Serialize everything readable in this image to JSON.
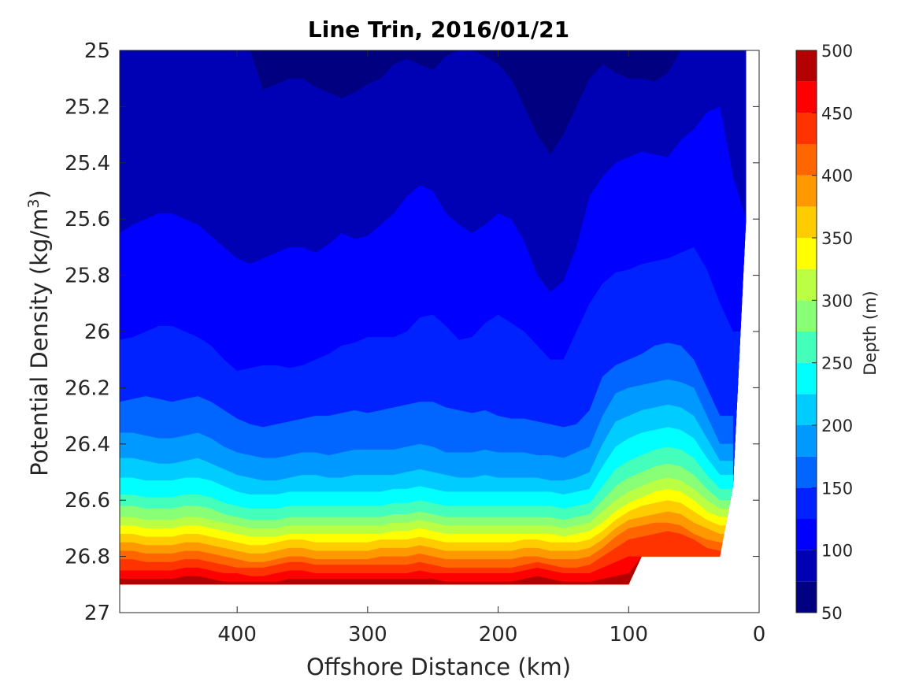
{
  "chart_data": {
    "type": "heatmap",
    "subtype": "filled-contour",
    "title": "Line Trin, 2016/01/21",
    "xlabel": "Offshore Distance (km)",
    "ylabel_main": "Potential Density (kg/m",
    "ylabel_sup": "3",
    "ylabel_close": ")",
    "xlim": [
      490,
      0
    ],
    "x_reversed": true,
    "ylim": [
      25,
      27
    ],
    "y_reversed": true,
    "xticks": [
      400,
      300,
      200,
      100,
      0
    ],
    "xtick_labels": [
      "400",
      "300",
      "200",
      "100",
      "0"
    ],
    "yticks": [
      25,
      25.2,
      25.4,
      25.6,
      25.8,
      26,
      26.2,
      26.4,
      26.6,
      26.8,
      27
    ],
    "ytick_labels": [
      "25",
      "25.2",
      "25.4",
      "25.6",
      "25.8",
      "26",
      "26.2",
      "26.4",
      "26.6",
      "26.8",
      "27"
    ],
    "colorbar": {
      "label": "Depth (m)",
      "range": [
        50,
        500
      ],
      "ticks": [
        50,
        100,
        150,
        200,
        250,
        300,
        350,
        400,
        450,
        500
      ],
      "tick_labels": [
        "50",
        "100",
        "150",
        "200",
        "250",
        "300",
        "350",
        "400",
        "450",
        "500"
      ],
      "levels": [
        50,
        75,
        100,
        125,
        150,
        175,
        200,
        225,
        250,
        275,
        300,
        325,
        350,
        375,
        400,
        425,
        450,
        475,
        500
      ],
      "colors": [
        "#000080",
        "#0000b5",
        "#0000ff",
        "#0022ff",
        "#0066ff",
        "#0099ff",
        "#00ccff",
        "#00ffff",
        "#44ffbb",
        "#88ff77",
        "#bbff44",
        "#ffff00",
        "#ffcc00",
        "#ff9900",
        "#ff6600",
        "#ff3300",
        "#ff0000",
        "#b30000"
      ]
    },
    "x_samples": [
      490,
      480,
      470,
      460,
      450,
      440,
      430,
      420,
      410,
      400,
      390,
      380,
      370,
      360,
      350,
      340,
      330,
      320,
      310,
      300,
      290,
      280,
      270,
      260,
      250,
      240,
      230,
      220,
      210,
      200,
      190,
      180,
      170,
      160,
      150,
      140,
      130,
      120,
      110,
      100,
      90,
      80,
      70,
      60,
      50,
      40,
      30,
      20,
      10,
      0
    ],
    "contours": [
      {
        "depth": 75,
        "y": [
          25,
          25,
          25,
          25,
          25,
          25,
          25,
          25,
          25,
          25,
          25.0,
          25.14,
          25.12,
          25.1,
          25.1,
          25.13,
          25.15,
          25.17,
          25.15,
          25.12,
          25.1,
          25.05,
          25.03,
          25.05,
          25.07,
          25.02,
          25.0,
          25,
          25.02,
          25.05,
          25.1,
          25.2,
          25.3,
          25.37,
          25.3,
          25.2,
          25.1,
          25.05,
          25.08,
          25.1,
          25.1,
          25.11,
          25.08,
          25.0,
          25,
          25,
          25,
          25,
          25.0,
          null
        ]
      },
      {
        "depth": 100,
        "y": [
          25.65,
          25.62,
          25.6,
          25.58,
          25.58,
          25.6,
          25.62,
          25.66,
          25.7,
          25.74,
          25.76,
          25.74,
          25.72,
          25.7,
          25.7,
          25.72,
          25.69,
          25.65,
          25.67,
          25.66,
          25.62,
          25.58,
          25.52,
          25.48,
          25.5,
          25.58,
          25.62,
          25.65,
          25.62,
          25.58,
          25.6,
          25.68,
          25.8,
          25.86,
          25.82,
          25.7,
          25.52,
          25.45,
          25.4,
          25.38,
          25.36,
          25.37,
          25.38,
          25.32,
          25.28,
          25.22,
          25.2,
          25.45,
          25.6,
          null
        ]
      },
      {
        "depth": 125,
        "y": [
          26.03,
          26.02,
          26.0,
          25.98,
          25.98,
          26.0,
          26.02,
          26.05,
          26.1,
          26.14,
          26.13,
          26.12,
          26.12,
          26.13,
          26.12,
          26.1,
          26.08,
          26.05,
          26.04,
          26.02,
          26.02,
          26.02,
          26.0,
          25.95,
          25.94,
          25.98,
          26.03,
          26.02,
          25.97,
          25.94,
          25.97,
          26.0,
          26.05,
          26.1,
          26.1,
          26.0,
          25.9,
          25.83,
          25.79,
          25.78,
          25.76,
          25.75,
          25.74,
          25.72,
          25.7,
          25.78,
          25.9,
          26.0,
          26.0,
          null
        ]
      },
      {
        "depth": 150,
        "y": [
          26.25,
          26.24,
          26.23,
          26.24,
          26.25,
          26.24,
          26.23,
          26.25,
          26.28,
          26.31,
          26.33,
          26.34,
          26.33,
          26.32,
          26.31,
          26.3,
          26.3,
          26.29,
          26.28,
          26.29,
          26.28,
          26.27,
          26.26,
          26.25,
          26.25,
          26.27,
          26.28,
          26.29,
          26.28,
          26.3,
          26.31,
          26.31,
          26.32,
          26.33,
          26.34,
          26.33,
          26.28,
          26.16,
          26.12,
          26.1,
          26.08,
          26.05,
          26.04,
          26.05,
          26.1,
          26.2,
          26.3,
          26.3,
          null,
          null
        ]
      },
      {
        "depth": 175,
        "y": [
          26.36,
          26.36,
          26.37,
          26.38,
          26.38,
          26.37,
          26.36,
          26.38,
          26.41,
          26.43,
          26.44,
          26.45,
          26.45,
          26.44,
          26.43,
          26.43,
          26.44,
          26.43,
          26.42,
          26.42,
          26.42,
          26.42,
          26.41,
          26.4,
          26.41,
          26.43,
          26.43,
          26.43,
          26.42,
          26.43,
          26.43,
          26.43,
          26.44,
          26.44,
          26.45,
          26.43,
          26.41,
          26.3,
          26.22,
          26.2,
          26.19,
          26.18,
          26.17,
          26.18,
          26.2,
          26.3,
          26.4,
          26.4,
          null,
          null
        ]
      },
      {
        "depth": 200,
        "y": [
          26.45,
          26.45,
          26.46,
          26.47,
          26.47,
          26.46,
          26.45,
          26.47,
          26.49,
          26.51,
          26.52,
          26.53,
          26.53,
          26.52,
          26.51,
          26.51,
          26.52,
          26.52,
          26.51,
          26.51,
          26.51,
          26.51,
          26.5,
          26.49,
          26.5,
          26.51,
          26.52,
          26.52,
          26.51,
          26.52,
          26.52,
          26.52,
          26.52,
          26.53,
          26.53,
          26.52,
          26.5,
          26.4,
          26.32,
          26.3,
          26.28,
          26.27,
          26.26,
          26.27,
          26.3,
          26.38,
          26.46,
          26.46,
          null,
          null
        ]
      },
      {
        "depth": 225,
        "y": [
          26.52,
          26.52,
          26.53,
          26.53,
          26.53,
          26.52,
          26.52,
          26.53,
          26.55,
          26.57,
          26.58,
          26.58,
          26.58,
          26.57,
          26.57,
          26.57,
          26.57,
          26.57,
          26.57,
          26.57,
          26.57,
          26.56,
          26.56,
          26.55,
          26.56,
          26.57,
          26.57,
          26.57,
          26.57,
          26.57,
          26.57,
          26.57,
          26.57,
          26.57,
          26.58,
          26.57,
          26.56,
          26.48,
          26.41,
          26.38,
          26.36,
          26.35,
          26.34,
          26.35,
          26.38,
          26.45,
          26.51,
          26.51,
          null,
          null
        ]
      },
      {
        "depth": 250,
        "y": [
          26.58,
          26.58,
          26.59,
          26.59,
          26.59,
          26.58,
          26.58,
          26.59,
          26.61,
          26.62,
          26.63,
          26.63,
          26.63,
          26.62,
          26.62,
          26.62,
          26.62,
          26.62,
          26.62,
          26.62,
          26.62,
          26.61,
          26.61,
          26.6,
          26.61,
          26.62,
          26.62,
          26.62,
          26.62,
          26.62,
          26.62,
          26.62,
          26.62,
          26.62,
          26.63,
          26.62,
          26.61,
          26.55,
          26.49,
          26.46,
          26.44,
          26.42,
          26.41,
          26.42,
          26.45,
          26.51,
          26.56,
          26.56,
          null,
          null
        ]
      },
      {
        "depth": 275,
        "y": [
          26.62,
          26.62,
          26.63,
          26.63,
          26.63,
          26.62,
          26.62,
          26.63,
          26.65,
          26.66,
          26.67,
          26.67,
          26.67,
          26.66,
          26.66,
          26.66,
          26.66,
          26.66,
          26.66,
          26.66,
          26.66,
          26.65,
          26.65,
          26.64,
          26.65,
          26.66,
          26.66,
          26.66,
          26.66,
          26.66,
          26.66,
          26.66,
          26.66,
          26.66,
          26.67,
          26.66,
          26.65,
          26.6,
          26.55,
          26.52,
          26.5,
          26.48,
          26.47,
          26.48,
          26.51,
          26.56,
          26.6,
          26.6,
          null,
          null
        ]
      },
      {
        "depth": 300,
        "y": [
          26.66,
          26.66,
          26.67,
          26.67,
          26.67,
          26.66,
          26.66,
          26.67,
          26.68,
          26.69,
          26.7,
          26.7,
          26.7,
          26.69,
          26.69,
          26.69,
          26.69,
          26.69,
          26.69,
          26.69,
          26.69,
          26.68,
          26.68,
          26.67,
          26.68,
          26.69,
          26.69,
          26.69,
          26.69,
          26.69,
          26.69,
          26.69,
          26.69,
          26.69,
          26.7,
          26.69,
          26.68,
          26.64,
          26.6,
          26.57,
          26.55,
          26.53,
          26.52,
          26.53,
          26.56,
          26.6,
          26.63,
          26.63,
          null,
          null
        ]
      },
      {
        "depth": 325,
        "y": [
          26.69,
          26.69,
          26.7,
          26.7,
          26.7,
          26.69,
          26.69,
          26.7,
          26.71,
          26.72,
          26.73,
          26.73,
          26.73,
          26.72,
          26.72,
          26.72,
          26.72,
          26.72,
          26.72,
          26.72,
          26.72,
          26.71,
          26.71,
          26.7,
          26.71,
          26.72,
          26.72,
          26.72,
          26.72,
          26.72,
          26.72,
          26.72,
          26.72,
          26.72,
          26.73,
          26.72,
          26.71,
          26.68,
          26.64,
          26.61,
          26.59,
          26.57,
          26.56,
          26.57,
          26.6,
          26.64,
          26.66,
          26.66,
          null,
          null
        ]
      },
      {
        "depth": 350,
        "y": [
          26.72,
          26.72,
          26.73,
          26.73,
          26.73,
          26.72,
          26.72,
          26.73,
          26.74,
          26.75,
          26.76,
          26.76,
          26.75,
          26.74,
          26.74,
          26.75,
          26.75,
          26.75,
          26.75,
          26.75,
          26.74,
          26.74,
          26.74,
          26.73,
          26.74,
          26.75,
          26.75,
          26.75,
          26.75,
          26.75,
          26.75,
          26.74,
          26.74,
          26.75,
          26.75,
          26.75,
          26.74,
          26.71,
          26.67,
          26.64,
          26.62,
          26.61,
          26.6,
          26.61,
          26.64,
          26.67,
          26.69,
          26.69,
          null,
          null
        ]
      },
      {
        "depth": 375,
        "y": [
          26.75,
          26.75,
          26.76,
          26.76,
          26.76,
          26.75,
          26.75,
          26.76,
          26.77,
          26.78,
          26.79,
          26.79,
          26.78,
          26.77,
          26.77,
          26.78,
          26.78,
          26.78,
          26.78,
          26.78,
          26.77,
          26.77,
          26.77,
          26.76,
          26.77,
          26.78,
          26.78,
          26.78,
          26.78,
          26.78,
          26.78,
          26.77,
          26.77,
          26.78,
          26.78,
          26.78,
          26.77,
          26.74,
          26.7,
          26.67,
          26.66,
          26.65,
          26.64,
          26.65,
          26.68,
          26.7,
          26.72,
          26.72,
          null,
          null
        ]
      },
      {
        "depth": 400,
        "y": [
          26.78,
          26.78,
          26.79,
          26.79,
          26.79,
          26.78,
          26.78,
          26.79,
          26.8,
          26.81,
          26.82,
          26.82,
          26.81,
          26.8,
          26.8,
          26.81,
          26.81,
          26.81,
          26.81,
          26.81,
          26.8,
          26.8,
          26.8,
          26.79,
          26.8,
          26.81,
          26.81,
          26.81,
          26.81,
          26.81,
          26.81,
          26.8,
          26.8,
          26.81,
          26.81,
          26.81,
          26.8,
          26.77,
          26.73,
          26.7,
          26.69,
          26.68,
          26.68,
          26.69,
          26.72,
          26.74,
          26.75,
          26.75,
          null,
          null
        ]
      },
      {
        "depth": 425,
        "y": [
          26.81,
          26.81,
          26.82,
          26.82,
          26.82,
          26.81,
          26.81,
          26.82,
          26.83,
          26.84,
          26.84,
          26.84,
          26.83,
          26.82,
          26.82,
          26.83,
          26.83,
          26.83,
          26.83,
          26.83,
          26.83,
          26.83,
          26.83,
          26.82,
          26.83,
          26.84,
          26.84,
          26.84,
          26.84,
          26.84,
          26.84,
          26.83,
          26.82,
          26.83,
          26.84,
          26.84,
          26.83,
          26.8,
          26.77,
          26.74,
          26.73,
          26.72,
          26.71,
          26.72,
          26.74,
          26.77,
          26.78,
          26.78,
          null,
          null
        ]
      },
      {
        "depth": 450,
        "y": [
          26.85,
          26.85,
          26.85,
          26.85,
          26.85,
          26.84,
          26.84,
          26.85,
          26.86,
          26.86,
          26.87,
          26.87,
          26.86,
          26.85,
          26.85,
          26.86,
          26.86,
          26.86,
          26.86,
          26.86,
          26.86,
          26.86,
          26.86,
          26.85,
          26.86,
          26.86,
          26.86,
          26.86,
          26.86,
          26.86,
          26.86,
          26.85,
          26.84,
          26.85,
          26.86,
          26.86,
          26.86,
          26.84,
          26.82,
          26.8,
          26.8,
          26.8,
          26.8,
          26.8,
          26.8,
          26.8,
          26.8,
          26.8,
          null,
          null
        ]
      },
      {
        "depth": 475,
        "y": [
          26.88,
          26.88,
          26.88,
          26.88,
          26.88,
          26.87,
          26.87,
          26.88,
          26.89,
          26.89,
          26.89,
          26.89,
          26.89,
          26.88,
          26.88,
          26.88,
          26.88,
          26.88,
          26.88,
          26.88,
          26.88,
          26.88,
          26.88,
          26.88,
          26.88,
          26.89,
          26.89,
          26.89,
          26.89,
          26.89,
          26.89,
          26.88,
          26.87,
          26.88,
          26.89,
          26.89,
          26.89,
          26.88,
          26.87,
          26.86,
          26.8,
          26.8,
          26.8,
          26.8,
          26.8,
          26.8,
          26.8,
          26.8,
          null,
          null
        ]
      }
    ],
    "data_bottom_y": [
      26.9,
      26.9,
      26.9,
      26.9,
      26.9,
      26.9,
      26.9,
      26.9,
      26.9,
      26.9,
      26.9,
      26.9,
      26.9,
      26.9,
      26.9,
      26.9,
      26.9,
      26.9,
      26.9,
      26.9,
      26.9,
      26.9,
      26.9,
      26.9,
      26.9,
      26.9,
      26.9,
      26.9,
      26.9,
      26.9,
      26.9,
      26.9,
      26.9,
      26.9,
      26.9,
      26.9,
      26.9,
      26.9,
      26.9,
      26.9,
      26.8,
      26.8,
      26.8,
      26.8,
      26.8,
      26.8,
      26.8,
      26.55,
      25.6,
      25.5
    ],
    "data_xmin_at_bottom": 100,
    "grid": false
  }
}
